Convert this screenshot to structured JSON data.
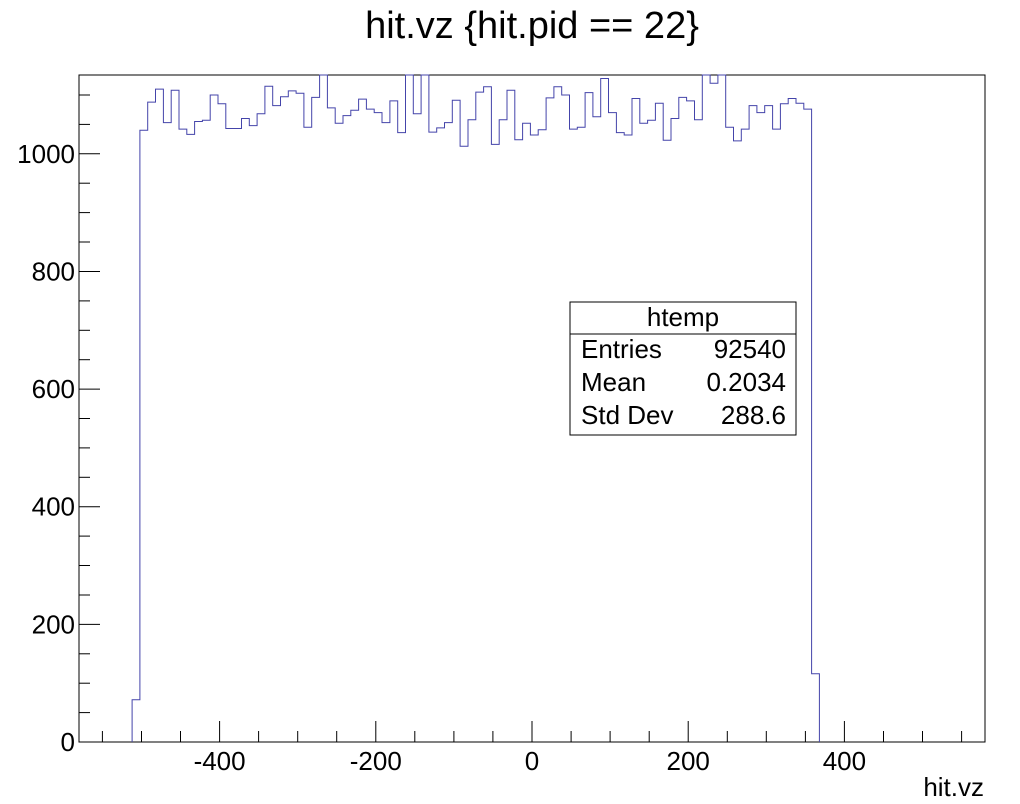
{
  "chart_data": {
    "type": "histogram",
    "title": "hit.vz {hit.pid == 22}",
    "xlabel": "hit.vz",
    "ylabel": "",
    "xlim": [
      -580,
      580
    ],
    "ylim": [
      0,
      1134
    ],
    "x_ticks": [
      -400,
      -200,
      0,
      200,
      400
    ],
    "y_ticks": [
      0,
      200,
      400,
      600,
      800,
      1000
    ],
    "x_ticks_labels": [
      "-400",
      "-200",
      "0",
      "200",
      "400"
    ],
    "y_ticks_labels": [
      "0",
      "200",
      "400",
      "600",
      "800",
      "1000"
    ],
    "grid": false,
    "line_color": "#4444aa",
    "bin_edges_start": -512,
    "bin_width": 10,
    "values": [
      72,
      1040,
      1088,
      1110,
      1053,
      1108,
      1042,
      1033,
      1055,
      1057,
      1100,
      1085,
      1043,
      1043,
      1060,
      1048,
      1068,
      1115,
      1082,
      1097,
      1107,
      1103,
      1045,
      1096,
      1140,
      1078,
      1052,
      1065,
      1074,
      1093,
      1076,
      1070,
      1053,
      1090,
      1036,
      1140,
      1068,
      1135,
      1037,
      1044,
      1053,
      1091,
      1013,
      1058,
      1105,
      1114,
      1016,
      1058,
      1108,
      1024,
      1052,
      1032,
      1041,
      1095,
      1114,
      1100,
      1042,
      1045,
      1104,
      1063,
      1128,
      1070,
      1036,
      1032,
      1094,
      1052,
      1057,
      1086,
      1023,
      1060,
      1096,
      1090,
      1058,
      1140,
      1120,
      1140,
      1045,
      1022,
      1042,
      1082,
      1070,
      1082,
      1042,
      1085,
      1094,
      1086,
      1076,
      116
    ],
    "stats_box": {
      "name": "htemp",
      "rows": [
        {
          "label": "Entries",
          "value": "92540"
        },
        {
          "label": "Mean",
          "value": "0.2034"
        },
        {
          "label": "Std Dev",
          "value": "288.6"
        }
      ]
    }
  }
}
